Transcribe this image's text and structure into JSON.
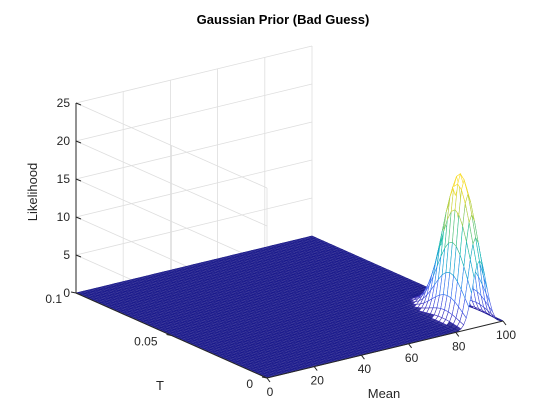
{
  "chart_data": {
    "type": "surface",
    "title": "Gaussian Prior (Bad Guess)",
    "xlabel": "Mean",
    "ylabel": "T",
    "zlabel": "Likelihood",
    "xlim": [
      0,
      100
    ],
    "ylim": [
      0,
      0.1
    ],
    "zlim": [
      0,
      25
    ],
    "xticks": [
      "0",
      "20",
      "40",
      "60",
      "80",
      "100"
    ],
    "yticks": [
      "0",
      "0.05",
      "0.1"
    ],
    "zticks": [
      "0",
      "5",
      "10",
      "15",
      "20",
      "25"
    ],
    "grid": true,
    "colormap": "parula",
    "surface": {
      "peak_mean": 90,
      "peak_mean_sd": 3,
      "peak_T": 0.01,
      "peak_T_sd": 0.008,
      "peak_value": 19
    },
    "colors": {
      "grid": "#dedede",
      "axis": "#262626",
      "mesh_edge": "#1a1a8c",
      "mesh_fill": "#3d3a9a"
    }
  }
}
